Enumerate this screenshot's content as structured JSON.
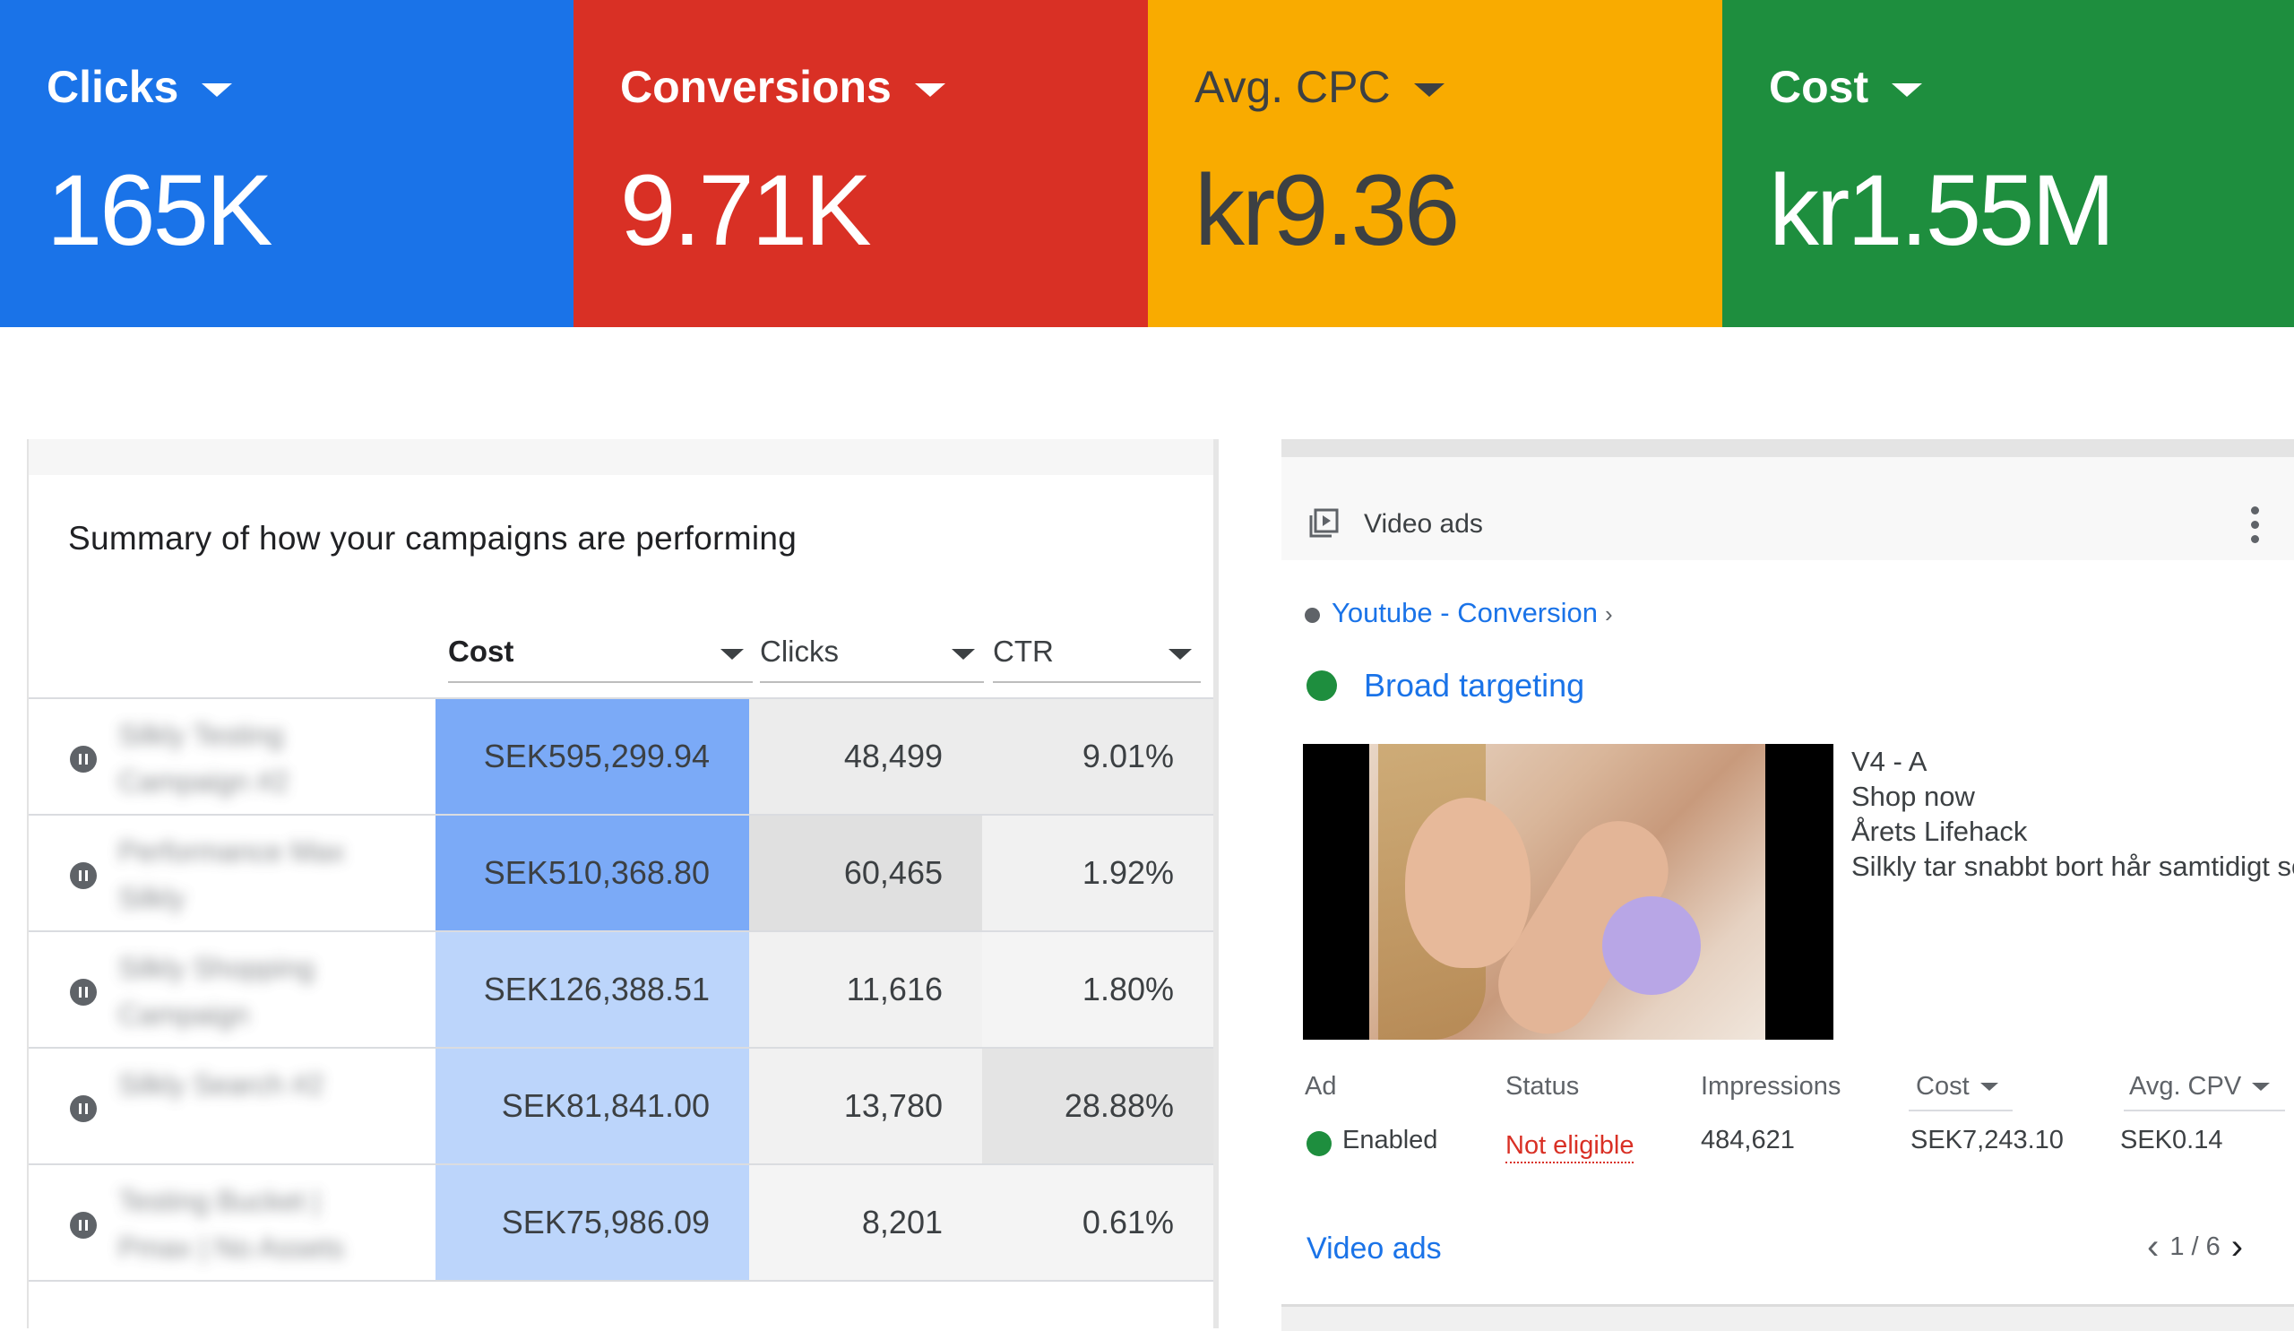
{
  "metrics": [
    {
      "label": "Clicks",
      "value": "165K",
      "bg": "#1a73e8",
      "fg": "#ffffff"
    },
    {
      "label": "Conversions",
      "value": "9.71K",
      "bg": "#d93025",
      "fg": "#ffffff"
    },
    {
      "label": "Avg. CPC",
      "value": "kr9.36",
      "bg": "#f9ab00",
      "fg": "#3c4043"
    },
    {
      "label": "Cost",
      "value": "kr1.55M",
      "bg": "#1e8e3e",
      "fg": "#ffffff"
    }
  ],
  "summary": {
    "title": "Summary of how your campaigns are performing",
    "columns": [
      "Cost",
      "Clicks",
      "CTR"
    ],
    "rows": [
      {
        "name": "Silkly Testing Campaign #2",
        "cost": "SEK595,299.94",
        "clicks": "48,499",
        "ctr": "9.01%",
        "cost_shade": "#7baaf7"
      },
      {
        "name": "Performance Max Silkly",
        "cost": "SEK510,368.80",
        "clicks": "60,465",
        "ctr": "1.92%",
        "cost_shade": "#7baaf7"
      },
      {
        "name": "Silkly Shopping Campaign",
        "cost": "SEK126,388.51",
        "clicks": "11,616",
        "ctr": "1.80%",
        "cost_shade": "#bcd5fb"
      },
      {
        "name": "Silkly Search #2",
        "cost": "SEK81,841.00",
        "clicks": "13,780",
        "ctr": "28.88%",
        "cost_shade": "#bcd5fb"
      },
      {
        "name": "Testing Bucket | Pmax | No Assets",
        "cost": "SEK75,986.09",
        "clicks": "8,201",
        "ctr": "0.61%",
        "cost_shade": "#bcd5fb"
      }
    ]
  },
  "video_ads": {
    "title": "Video ads",
    "breadcrumb": "Youtube - Conversion",
    "breadcrumb_sep": "›",
    "ad_group": "Broad targeting",
    "ad_lines": [
      "V4 - A",
      "Shop now",
      "Årets Lifehack",
      "Silkly tar snabbt bort hår samtidigt som"
    ],
    "table": {
      "headers": {
        "ad": "Ad",
        "status": "Status",
        "impressions": "Impressions",
        "cost": "Cost",
        "avg_cpv": "Avg. CPV"
      },
      "values": {
        "ad": "Enabled",
        "status": "Not eligible",
        "impressions": "484,621",
        "cost": "SEK7,243.10",
        "avg_cpv": "SEK0.14"
      }
    },
    "footer_link": "Video ads",
    "pager": "1 / 6",
    "prev": "‹",
    "next": "›"
  }
}
